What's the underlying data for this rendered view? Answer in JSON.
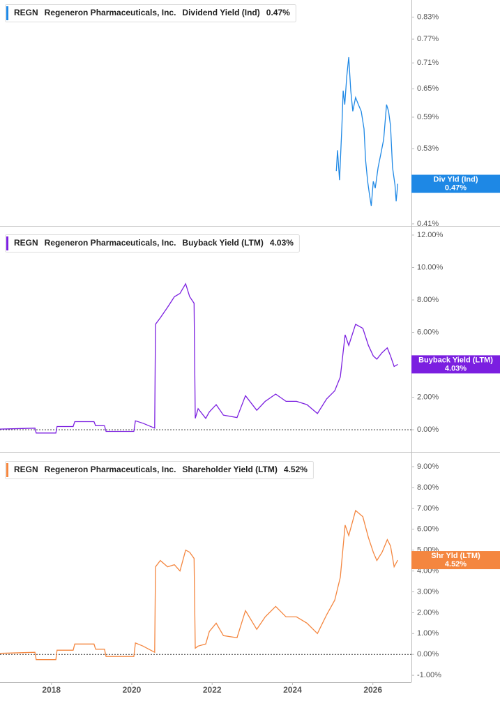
{
  "chart_data": [
    {
      "type": "line",
      "ticker": "REGN",
      "company": "Regeneron Pharmaceuticals, Inc.",
      "log_scale": true,
      "zero_line": false,
      "xlim": [
        2016.72,
        2026.96
      ],
      "ylim": [
        0.407,
        0.88
      ],
      "yticks": [
        {
          "value": 0.83,
          "label": "0.83%"
        },
        {
          "value": 0.77,
          "label": "0.77%"
        },
        {
          "value": 0.71,
          "label": "0.71%"
        },
        {
          "value": 0.65,
          "label": "0.65%"
        },
        {
          "value": 0.59,
          "label": "0.59%"
        },
        {
          "value": 0.53,
          "label": "0.53%"
        },
        {
          "value": 0.47,
          "label": "0.47%"
        },
        {
          "value": 0.41,
          "label": "0.41%"
        }
      ],
      "x": [
        2025.09,
        2025.12,
        2025.17,
        2025.23,
        2025.26,
        2025.3,
        2025.35,
        2025.4,
        2025.45,
        2025.5,
        2025.57,
        2025.64,
        2025.71,
        2025.78,
        2025.82,
        2025.87,
        2025.92,
        2025.96,
        2026.01,
        2026.06,
        2026.13,
        2026.2,
        2026.27,
        2026.34,
        2026.39,
        2026.44,
        2026.49,
        2026.55,
        2026.58,
        2026.62
      ],
      "series": [
        {
          "name": "Dividend Yield (Ind)",
          "color": "#1e88e5",
          "values": [
            0.491,
            0.527,
            0.476,
            0.573,
            0.646,
            0.616,
            0.677,
            0.724,
            0.646,
            0.602,
            0.631,
            0.616,
            0.602,
            0.567,
            0.509,
            0.474,
            0.451,
            0.436,
            0.474,
            0.463,
            0.497,
            0.521,
            0.547,
            0.616,
            0.602,
            0.573,
            0.497,
            0.468,
            0.443,
            0.47
          ]
        }
      ],
      "flag_label": "Div Yld (Ind)",
      "last_value": 0.47,
      "last_value_label": "0.47%"
    },
    {
      "type": "line",
      "ticker": "REGN",
      "company": "Regeneron Pharmaceuticals, Inc.",
      "log_scale": false,
      "zero_line": true,
      "xlim": [
        2016.72,
        2026.96
      ],
      "ylim": [
        -1.37,
        12.3
      ],
      "yticks": [
        {
          "value": 12,
          "label": "12.00%"
        },
        {
          "value": 10,
          "label": "10.00%"
        },
        {
          "value": 8,
          "label": "8.00%"
        },
        {
          "value": 6,
          "label": "6.00%"
        },
        {
          "value": 4,
          "label": "4.00%"
        },
        {
          "value": 2,
          "label": "2.00%"
        },
        {
          "value": 0,
          "label": "0.00%"
        }
      ],
      "x": [
        2016.72,
        2017.59,
        2017.62,
        2018.11,
        2018.14,
        2018.54,
        2018.58,
        2019.06,
        2019.1,
        2019.32,
        2019.36,
        2020.05,
        2020.09,
        2020.28,
        2020.57,
        2020.59,
        2020.71,
        2020.89,
        2021.06,
        2021.2,
        2021.34,
        2021.44,
        2021.55,
        2021.58,
        2021.65,
        2021.84,
        2021.93,
        2022.1,
        2022.28,
        2022.62,
        2022.83,
        2023.11,
        2023.32,
        2023.58,
        2023.84,
        2024.1,
        2024.36,
        2024.62,
        2024.85,
        2025.05,
        2025.19,
        2025.31,
        2025.4,
        2025.57,
        2025.75,
        2025.89,
        2026.01,
        2026.1,
        2026.23,
        2026.36,
        2026.44,
        2026.53,
        2026.62
      ],
      "series": [
        {
          "name": "Buyback Yield (LTM)",
          "color": "#7b1fe0",
          "values": [
            0.04,
            0.1,
            -0.2,
            -0.2,
            0.2,
            0.2,
            0.5,
            0.5,
            0.25,
            0.25,
            -0.1,
            -0.1,
            0.55,
            0.4,
            0.1,
            6.5,
            6.9,
            7.55,
            8.2,
            8.4,
            9.0,
            8.2,
            7.8,
            0.7,
            1.3,
            0.7,
            1.1,
            1.55,
            0.9,
            0.75,
            2.1,
            1.2,
            1.75,
            2.2,
            1.75,
            1.75,
            1.55,
            1.0,
            1.9,
            2.4,
            3.25,
            5.85,
            5.2,
            6.5,
            6.25,
            5.2,
            4.55,
            4.35,
            4.75,
            5.05,
            4.55,
            3.9,
            4.03
          ]
        }
      ],
      "flag_label": "Buyback Yield (LTM)",
      "last_value": 4.03,
      "last_value_label": "4.03%"
    },
    {
      "type": "line",
      "ticker": "REGN",
      "company": "Regeneron Pharmaceuticals, Inc.",
      "log_scale": false,
      "zero_line": true,
      "xlim": [
        2016.72,
        2026.96
      ],
      "xticks": [
        2018,
        2020,
        2022,
        2024,
        2026
      ],
      "ylim": [
        -1.33,
        9.47
      ],
      "yticks": [
        {
          "value": 9,
          "label": "9.00%"
        },
        {
          "value": 8,
          "label": "8.00%"
        },
        {
          "value": 7,
          "label": "7.00%"
        },
        {
          "value": 6,
          "label": "6.00%"
        },
        {
          "value": 5,
          "label": "5.00%"
        },
        {
          "value": 4,
          "label": "4.00%"
        },
        {
          "value": 3,
          "label": "3.00%"
        },
        {
          "value": 2,
          "label": "2.00%"
        },
        {
          "value": 1,
          "label": "1.00%"
        },
        {
          "value": 0,
          "label": "0.00%"
        },
        {
          "value": -1,
          "label": "-1.00%"
        }
      ],
      "x": [
        2016.72,
        2017.59,
        2017.62,
        2018.11,
        2018.14,
        2018.54,
        2018.58,
        2019.06,
        2019.1,
        2019.32,
        2019.36,
        2020.05,
        2020.09,
        2020.28,
        2020.57,
        2020.59,
        2020.71,
        2020.89,
        2021.06,
        2021.2,
        2021.34,
        2021.44,
        2021.55,
        2021.58,
        2021.65,
        2021.84,
        2021.93,
        2022.1,
        2022.28,
        2022.62,
        2022.83,
        2023.11,
        2023.32,
        2023.58,
        2023.84,
        2024.1,
        2024.36,
        2024.62,
        2024.85,
        2025.05,
        2025.19,
        2025.31,
        2025.4,
        2025.57,
        2025.75,
        2025.89,
        2026.01,
        2026.1,
        2026.23,
        2026.36,
        2026.44,
        2026.53,
        2026.62
      ],
      "series": [
        {
          "name": "Shareholder Yield (LTM)",
          "color": "#f4863f",
          "values": [
            0.05,
            0.1,
            -0.25,
            -0.25,
            0.2,
            0.2,
            0.5,
            0.5,
            0.25,
            0.25,
            -0.1,
            -0.1,
            0.55,
            0.4,
            0.1,
            4.2,
            4.5,
            4.2,
            4.3,
            4.0,
            5.0,
            4.9,
            4.6,
            0.3,
            0.4,
            0.5,
            1.1,
            1.5,
            0.9,
            0.8,
            2.1,
            1.2,
            1.8,
            2.3,
            1.8,
            1.8,
            1.5,
            1.0,
            1.9,
            2.6,
            3.7,
            6.2,
            5.7,
            6.9,
            6.6,
            5.6,
            4.9,
            4.5,
            4.9,
            5.5,
            5.2,
            4.2,
            4.52
          ]
        }
      ],
      "flag_label": "Shr Yld (LTM)",
      "last_value": 4.52,
      "last_value_label": "4.52%"
    }
  ]
}
